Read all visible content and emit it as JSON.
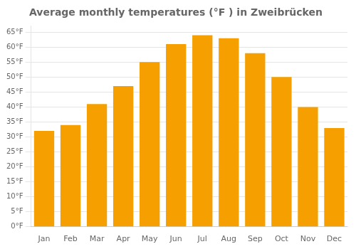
{
  "chart_data": {
    "type": "bar",
    "title": "Average monthly temperatures (°F ) in Zweibrücken",
    "categories": [
      "Jan",
      "Feb",
      "Mar",
      "Apr",
      "May",
      "Jun",
      "Jul",
      "Aug",
      "Sep",
      "Oct",
      "Nov",
      "Dec"
    ],
    "values": [
      32,
      34,
      41,
      47,
      55,
      61,
      64,
      63,
      58,
      50,
      40,
      33
    ],
    "color": "#F5A000",
    "ylim": [
      0,
      67
    ],
    "yticks": [
      {
        "value": 0,
        "label": "0°F"
      },
      {
        "value": 5,
        "label": "5°F"
      },
      {
        "value": 10,
        "label": "10°F"
      },
      {
        "value": 15,
        "label": "15°F"
      },
      {
        "value": 20,
        "label": "20°F"
      },
      {
        "value": 25,
        "label": "25°F"
      },
      {
        "value": 30,
        "label": "30°F"
      },
      {
        "value": 35,
        "label": "35°F"
      },
      {
        "value": 40,
        "label": "40°F"
      },
      {
        "value": 45,
        "label": "45°F"
      },
      {
        "value": 50,
        "label": "50°F"
      },
      {
        "value": 55,
        "label": "55°F"
      },
      {
        "value": 60,
        "label": "60°F"
      },
      {
        "value": 65,
        "label": "65°F"
      }
    ],
    "grid": true
  }
}
